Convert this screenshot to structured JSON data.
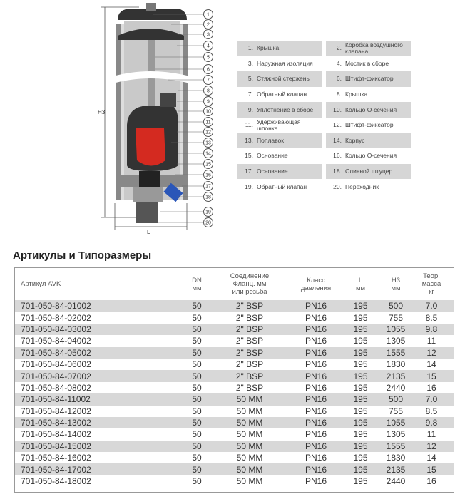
{
  "diagram": {
    "h3_label": "H3",
    "l_label": "L",
    "callouts": [
      "1",
      "2",
      "3",
      "4",
      "5",
      "6",
      "7",
      "8",
      "9",
      "10",
      "11",
      "12",
      "13",
      "14",
      "15",
      "16",
      "17",
      "18",
      "19",
      "20"
    ],
    "float_color": "#d42a20"
  },
  "parts": [
    [
      "1.",
      "Крышка",
      "2.",
      "Коробка воздушного клапана"
    ],
    [
      "3.",
      "Наружная изоляция",
      "4.",
      "Мостик в сборе"
    ],
    [
      "5.",
      "Стяжной стержень",
      "6.",
      "Штифт-фиксатор"
    ],
    [
      "7.",
      "Обратный клапан",
      "8.",
      "Крышка"
    ],
    [
      "9.",
      "Уплотнение в сборе",
      "10.",
      "Кольцо О-сечения"
    ],
    [
      "11.",
      "Удерживающая шпонка",
      "12.",
      "Штифт-фиксатор"
    ],
    [
      "13.",
      "Поплавок",
      "14.",
      "Корпус"
    ],
    [
      "15.",
      "Основание",
      "16.",
      "Кольцо О-сечения"
    ],
    [
      "17.",
      "Основание",
      "18.",
      "Сливной штуцер"
    ],
    [
      "19.",
      "Обратный клапан",
      "20.",
      "Переходник"
    ]
  ],
  "section_title": "Артикулы и Типоразмеры",
  "table": {
    "headers": [
      "Артикул AVK",
      "DN\nмм",
      "Соединение\nФланц. мм\nили резьба",
      "Класс\nдавления",
      "L\nмм",
      "H3\nмм",
      "Теор.\nмасса\nкг"
    ],
    "rows": [
      [
        "701-050-84-01002",
        "50",
        "2\" BSP",
        "PN16",
        "195",
        "500",
        "7.0"
      ],
      [
        "701-050-84-02002",
        "50",
        "2\" BSP",
        "PN16",
        "195",
        "755",
        "8.5"
      ],
      [
        "701-050-84-03002",
        "50",
        "2\" BSP",
        "PN16",
        "195",
        "1055",
        "9.8"
      ],
      [
        "701-050-84-04002",
        "50",
        "2\" BSP",
        "PN16",
        "195",
        "1305",
        "11"
      ],
      [
        "701-050-84-05002",
        "50",
        "2\" BSP",
        "PN16",
        "195",
        "1555",
        "12"
      ],
      [
        "701-050-84-06002",
        "50",
        "2\" BSP",
        "PN16",
        "195",
        "1830",
        "14"
      ],
      [
        "701-050-84-07002",
        "50",
        "2\" BSP",
        "PN16",
        "195",
        "2135",
        "15"
      ],
      [
        "701-050-84-08002",
        "50",
        "2\" BSP",
        "PN16",
        "195",
        "2440",
        "16"
      ],
      [
        "701-050-84-11002",
        "50",
        "50 MM",
        "PN16",
        "195",
        "500",
        "7.0"
      ],
      [
        "701-050-84-12002",
        "50",
        "50 MM",
        "PN16",
        "195",
        "755",
        "8.5"
      ],
      [
        "701-050-84-13002",
        "50",
        "50 MM",
        "PN16",
        "195",
        "1055",
        "9.8"
      ],
      [
        "701-050-84-14002",
        "50",
        "50 MM",
        "PN16",
        "195",
        "1305",
        "11"
      ],
      [
        "701-050-84-15002",
        "50",
        "50 MM",
        "PN16",
        "195",
        "1555",
        "12"
      ],
      [
        "701-050-84-16002",
        "50",
        "50 MM",
        "PN16",
        "195",
        "1830",
        "14"
      ],
      [
        "701-050-84-17002",
        "50",
        "50 MM",
        "PN16",
        "195",
        "2135",
        "15"
      ],
      [
        "701-050-84-18002",
        "50",
        "50 MM",
        "PN16",
        "195",
        "2440",
        "16"
      ]
    ]
  }
}
